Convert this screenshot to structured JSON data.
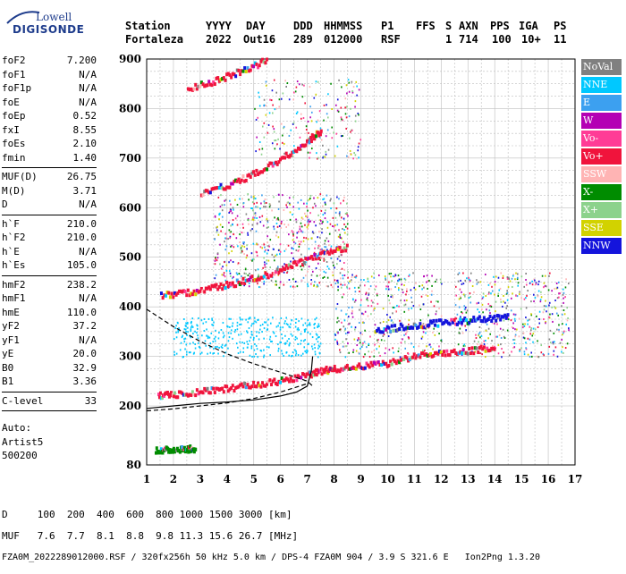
{
  "logo": {
    "line1": "Lowell",
    "line2": "DIGISONDE"
  },
  "header": {
    "labels": [
      "Station",
      "YYYY",
      "DAY",
      "DDD",
      "HHMMSS",
      "P1",
      "FFS",
      "S",
      "AXN",
      "PPS",
      "IGA",
      "PS"
    ],
    "values": [
      "Fortaleza",
      "2022",
      "Out16",
      "289",
      "012000",
      "RSF",
      "1",
      "714",
      "100",
      "10+",
      "11"
    ]
  },
  "params": [
    [
      [
        "foF2",
        "7.200"
      ],
      [
        "foF1",
        "N/A"
      ],
      [
        "foF1p",
        "N/A"
      ],
      [
        "foE",
        "N/A"
      ],
      [
        "foEp",
        "0.52"
      ],
      [
        "fxI",
        "8.55"
      ],
      [
        "foEs",
        "2.10"
      ],
      [
        "fmin",
        "1.40"
      ]
    ],
    [
      [
        "MUF(D)",
        "26.75"
      ],
      [
        "M(D)",
        "3.71"
      ],
      [
        "D",
        "N/A"
      ]
    ],
    [
      [
        "h`F",
        "210.0"
      ],
      [
        "h`F2",
        "210.0"
      ],
      [
        "h`E",
        "N/A"
      ],
      [
        "h`Es",
        "105.0"
      ]
    ],
    [
      [
        "hmF2",
        "238.2"
      ],
      [
        "hmF1",
        "N/A"
      ],
      [
        "hmE",
        "110.0"
      ],
      [
        "yF2",
        "37.2"
      ],
      [
        "yF1",
        "N/A"
      ],
      [
        "yE",
        "20.0"
      ],
      [
        "B0",
        "32.9"
      ],
      [
        "B1",
        "3.36"
      ]
    ],
    [
      [
        "C-level",
        "33"
      ]
    ]
  ],
  "auto": [
    "Auto:",
    "Artist5",
    "500200"
  ],
  "legend": [
    {
      "label": "NoVal",
      "color": "#808080"
    },
    {
      "label": "NNE",
      "color": "#00c8ff"
    },
    {
      "label": "E",
      "color": "#3ca0f0"
    },
    {
      "label": "W",
      "color": "#b400b4"
    },
    {
      "label": "Vo-",
      "color": "#ff3c96"
    },
    {
      "label": "Vo+",
      "color": "#f0143c"
    },
    {
      "label": "SSW",
      "color": "#ffb4b4"
    },
    {
      "label": "X-",
      "color": "#008c00"
    },
    {
      "label": "X+",
      "color": "#8cd28c"
    },
    {
      "label": "SSE",
      "color": "#d2d200"
    },
    {
      "label": "NNW",
      "color": "#1414dc"
    }
  ],
  "bottom": {
    "d_line": "D     100  200  400  600  800 1000 1500 3000 [km]",
    "muf_line": "MUF   7.6  7.7  8.1  8.8  9.8 11.3 15.6 26.7 [MHz]",
    "footer": "FZA0M_2022289012000.RSF / 320fx256h 50 kHz 5.0 km / DPS-4 FZA0M 904 / 3.9 S 321.6 E   Ion2Png 1.3.20"
  },
  "chart_data": {
    "type": "scatter",
    "xlim": [
      1,
      17
    ],
    "ylim": [
      80,
      900
    ],
    "x_ticks": [
      1,
      2,
      3,
      4,
      5,
      6,
      7,
      8,
      9,
      10,
      11,
      12,
      13,
      14,
      15,
      16,
      17
    ],
    "y_ticks": [
      80,
      200,
      300,
      400,
      500,
      600,
      700,
      800,
      900
    ],
    "grid": true,
    "traces": [
      {
        "name": "o-trace",
        "color": "#f0143c",
        "points": [
          [
            1.4,
            220
          ],
          [
            2,
            222
          ],
          [
            3,
            228
          ],
          [
            4,
            235
          ],
          [
            5,
            242
          ],
          [
            6,
            250
          ],
          [
            7,
            262
          ],
          [
            7.5,
            270
          ],
          [
            8,
            275
          ],
          [
            9,
            280
          ],
          [
            10,
            285
          ],
          [
            11,
            300
          ],
          [
            12,
            305
          ],
          [
            13,
            310
          ],
          [
            14,
            320
          ]
        ]
      },
      {
        "name": "x-trace",
        "color": "#1414dc",
        "points": [
          [
            9.5,
            350
          ],
          [
            10.5,
            360
          ],
          [
            11.5,
            365
          ],
          [
            12.5,
            370
          ],
          [
            13.5,
            375
          ],
          [
            14.5,
            378
          ]
        ]
      },
      {
        "name": "2nd-hop",
        "color": "#f0143c",
        "points": [
          [
            1.5,
            422
          ],
          [
            2.5,
            428
          ],
          [
            3.5,
            438
          ],
          [
            4.5,
            450
          ],
          [
            5.5,
            465
          ],
          [
            6.5,
            485
          ],
          [
            7.5,
            505
          ],
          [
            8.5,
            520
          ]
        ]
      },
      {
        "name": "3rd-hop",
        "color": "#f0143c",
        "points": [
          [
            3,
            628
          ],
          [
            4,
            645
          ],
          [
            5,
            668
          ],
          [
            6,
            698
          ],
          [
            7,
            735
          ],
          [
            7.5,
            755
          ]
        ]
      },
      {
        "name": "4th-hop",
        "color": "#f0143c",
        "points": [
          [
            2.5,
            840
          ],
          [
            3.5,
            855
          ],
          [
            4.5,
            875
          ],
          [
            5.5,
            898
          ]
        ]
      },
      {
        "name": "es-trace",
        "color": "#008c00",
        "points": [
          [
            1.3,
            110
          ],
          [
            1.8,
            110
          ],
          [
            2.4,
            112
          ],
          [
            2.8,
            112
          ]
        ]
      }
    ],
    "profile_solid": [
      [
        1,
        195
      ],
      [
        2,
        200
      ],
      [
        3,
        205
      ],
      [
        4,
        208
      ],
      [
        5,
        212
      ],
      [
        6,
        220
      ],
      [
        6.6,
        228
      ],
      [
        7,
        240
      ],
      [
        7.15,
        270
      ],
      [
        7.2,
        300
      ]
    ],
    "profile_dashed": [
      [
        1,
        395
      ],
      [
        2,
        360
      ],
      [
        3,
        330
      ],
      [
        4,
        305
      ],
      [
        5,
        285
      ],
      [
        6,
        268
      ],
      [
        7,
        250
      ],
      [
        7.2,
        240
      ]
    ],
    "lower_dashed": [
      [
        1,
        190
      ],
      [
        2,
        194
      ],
      [
        3,
        200
      ],
      [
        4,
        206
      ],
      [
        5,
        215
      ],
      [
        6,
        228
      ],
      [
        7,
        245
      ]
    ]
  }
}
